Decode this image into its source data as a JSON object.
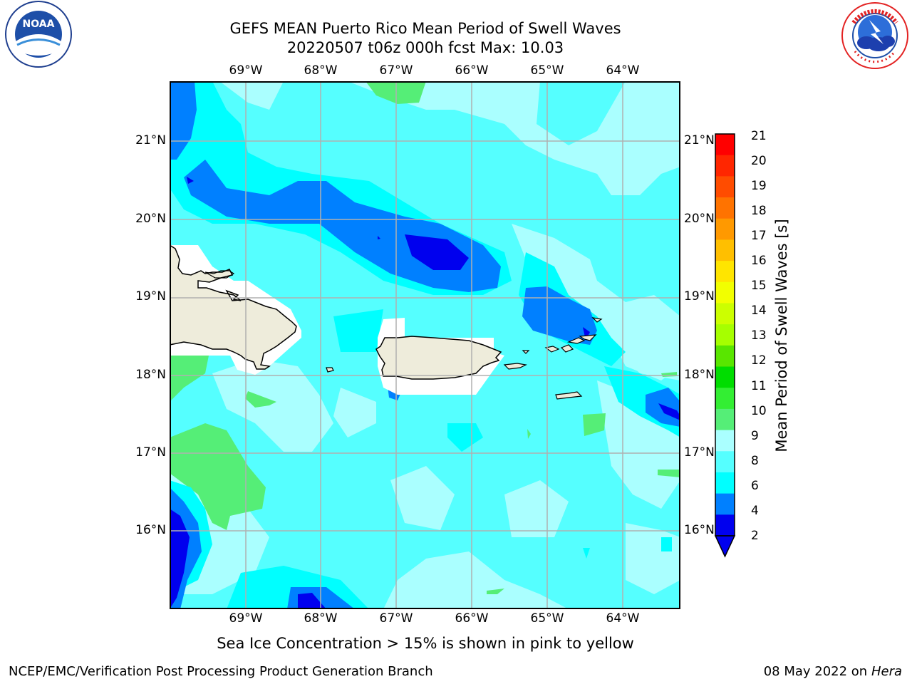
{
  "header": {
    "title_line1": "GEFS MEAN Puerto Rico Mean Period of Swell Waves",
    "title_line2": "20220507 t06z 000h fcst   Max: 10.03"
  },
  "logos": {
    "left": "NOAA",
    "left_ring_text": "NATIONAL OCEANIC AND ATMOSPHERIC ADMINISTRATION · U.S. DEPARTMENT OF COMMERCE",
    "right_ring_text": "NATIONAL WEATHER SERVICE"
  },
  "map": {
    "lon_labels": [
      "69°W",
      "68°W",
      "67°W",
      "66°W",
      "65°W",
      "64°W"
    ],
    "lat_labels": [
      "21°N",
      "20°N",
      "19°N",
      "18°N",
      "17°N",
      "16°N"
    ],
    "land_color": "#eeecdb",
    "grid_color": "#b0b0b0"
  },
  "colorbar": {
    "title": "Mean Period of Swell Waves [s]",
    "ticks": [
      "21",
      "20",
      "19",
      "18",
      "17",
      "16",
      "15",
      "14",
      "13",
      "12",
      "11",
      "10",
      "9",
      "8",
      "6",
      "4",
      "2"
    ],
    "colors": [
      "#ff0000",
      "#ff2600",
      "#ff4c00",
      "#ff7300",
      "#ff9900",
      "#ffbf00",
      "#ffe500",
      "#f2ff00",
      "#ccff00",
      "#a6ff00",
      "#59e600",
      "#00dd00",
      "#33ee33",
      "#55ee77",
      "#aaffff",
      "#55ffff",
      "#00ffff",
      "#0080ff",
      "#0000ee"
    ],
    "extend_color": "#0000ee"
  },
  "footer": {
    "note": "Sea Ice Concentration > 15% is shown in pink to yellow",
    "left": "NCEP/EMC/Verification Post Processing Product Generation Branch",
    "date": "08 May 2022 on",
    "host": "Hera"
  }
}
